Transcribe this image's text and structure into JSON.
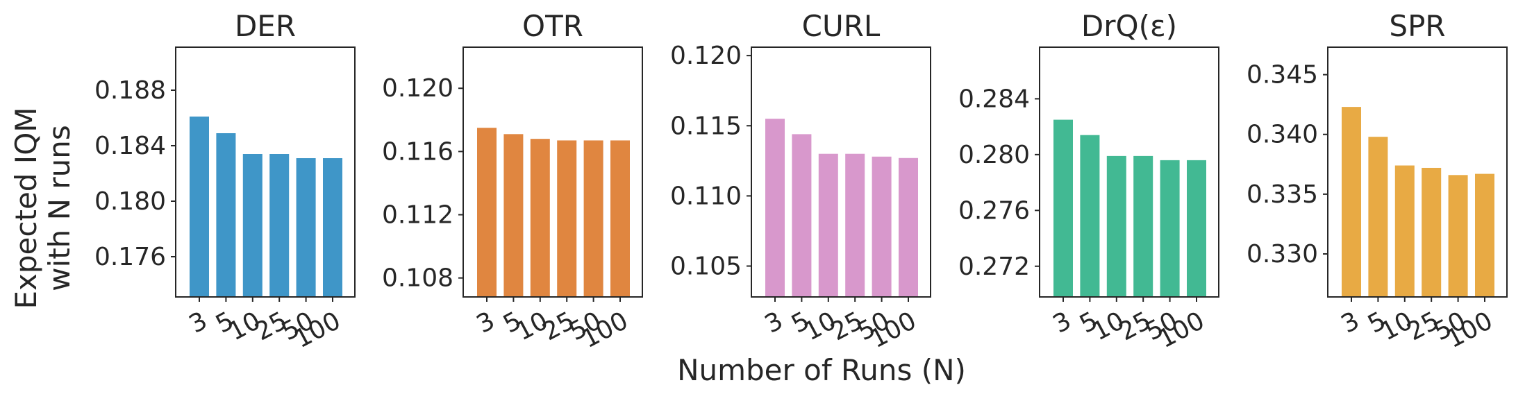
{
  "figure": {
    "xlabel": "Number of Runs (N)",
    "ylabel_lines": [
      "Expected IQM",
      "with N runs"
    ]
  },
  "chart_data": [
    {
      "type": "bar",
      "title": "DER",
      "color": "#3f96c8",
      "categories": [
        "3",
        "5",
        "10",
        "25",
        "50",
        "100"
      ],
      "values": [
        0.1861,
        0.1849,
        0.1834,
        0.1834,
        0.1831,
        0.1831
      ],
      "ylim": [
        0.1731,
        0.1911
      ],
      "yticks": [
        0.176,
        0.18,
        0.184,
        0.188
      ],
      "ytick_labels": [
        "0.176",
        "0.180",
        "0.184",
        "0.188"
      ]
    },
    {
      "type": "bar",
      "title": "OTR",
      "color": "#e08640",
      "categories": [
        "3",
        "5",
        "10",
        "25",
        "50",
        "100"
      ],
      "values": [
        0.1175,
        0.1171,
        0.1168,
        0.1167,
        0.1167,
        0.1167
      ],
      "ylim": [
        0.1068,
        0.1226
      ],
      "yticks": [
        0.108,
        0.112,
        0.116,
        0.12
      ],
      "ytick_labels": [
        "0.108",
        "0.112",
        "0.116",
        "0.120"
      ]
    },
    {
      "type": "bar",
      "title": "CURL",
      "color": "#d898cc",
      "categories": [
        "3",
        "5",
        "10",
        "25",
        "50",
        "100"
      ],
      "values": [
        0.1155,
        0.1144,
        0.113,
        0.113,
        0.1128,
        0.1127
      ],
      "ylim": [
        0.1028,
        0.1206
      ],
      "yticks": [
        0.105,
        0.11,
        0.115,
        0.12
      ],
      "ytick_labels": [
        "0.105",
        "0.110",
        "0.115",
        "0.120"
      ]
    },
    {
      "type": "bar",
      "title": "DrQ(ε)",
      "color": "#42b993",
      "categories": [
        "3",
        "5",
        "10",
        "25",
        "50",
        "100"
      ],
      "values": [
        0.2825,
        0.2814,
        0.2799,
        0.2799,
        0.2796,
        0.2796
      ],
      "ylim": [
        0.2698,
        0.2877
      ],
      "yticks": [
        0.272,
        0.276,
        0.28,
        0.284
      ],
      "ytick_labels": [
        "0.272",
        "0.276",
        "0.280",
        "0.284"
      ]
    },
    {
      "type": "bar",
      "title": "SPR",
      "color": "#e8aa44",
      "categories": [
        "3",
        "5",
        "10",
        "25",
        "50",
        "100"
      ],
      "values": [
        0.3423,
        0.3398,
        0.3374,
        0.3372,
        0.3366,
        0.3367
      ],
      "ylim": [
        0.3264,
        0.3473
      ],
      "yticks": [
        0.33,
        0.335,
        0.34,
        0.345
      ],
      "ytick_labels": [
        "0.330",
        "0.335",
        "0.340",
        "0.345"
      ]
    }
  ]
}
